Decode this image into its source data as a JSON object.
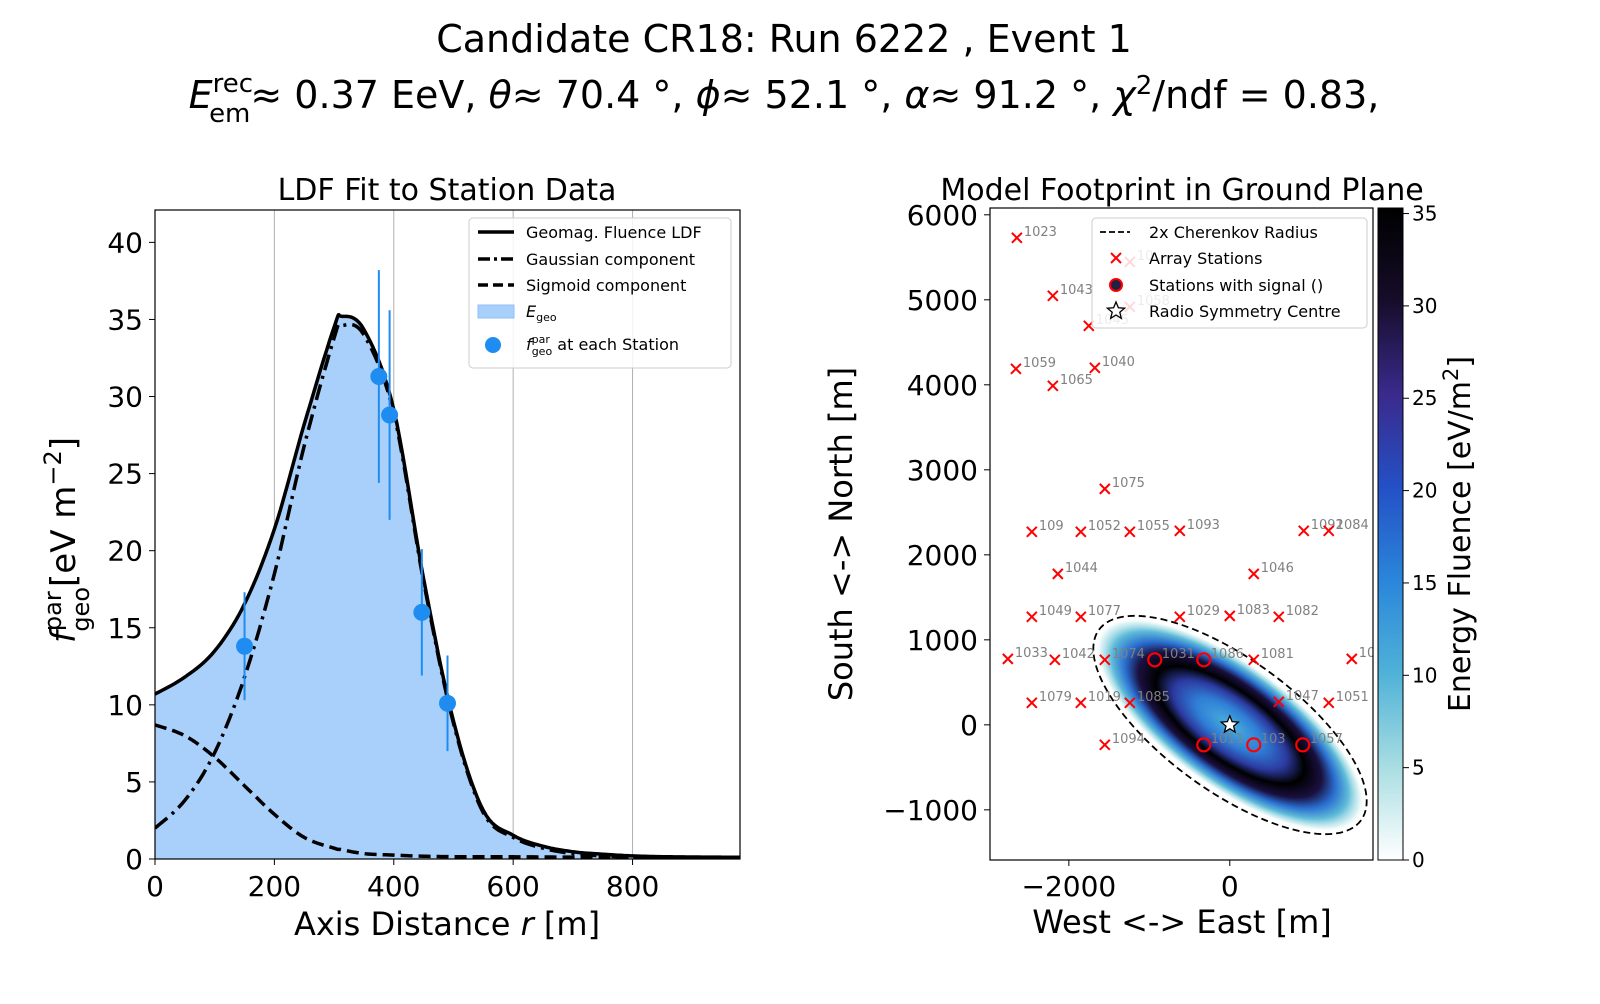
{
  "title": {
    "line1": "Candidate CR18: Run 6222 , Event 1",
    "energy_symbol": "E",
    "energy_sup": "rec",
    "energy_sub": "em",
    "energy_text": "≈  0.37 EeV, ",
    "theta_symbol": "θ",
    "theta_text": "≈  70.4 °, ",
    "phi_symbol": "ϕ",
    "phi_text": "≈  52.1 °, ",
    "alpha_symbol": "α",
    "alpha_text": "≈  91.2 °, ",
    "chi_symbol": "χ",
    "chi_sup": "2",
    "chi_text": "/ndf = 0.83,"
  },
  "chart_data": [
    {
      "type": "line",
      "title": "LDF Fit to Station Data",
      "xlabel": "Axis Distance r [m]",
      "xlabel_text": "Axis Distance ",
      "xlabel_var": "r",
      "xlabel_unit": " [m]",
      "ylabel": "f_geo^par [eV m^-2]",
      "ylabel_var": "f",
      "ylabel_sub": "geo",
      "ylabel_sup": "par",
      "ylabel_unit": "[eV m",
      "ylabel_unit_sup": "−2",
      "ylabel_unit_close": "]",
      "xlim": [
        0,
        980
      ],
      "ylim": [
        0,
        42.1
      ],
      "xticks": [
        "0",
        "200",
        "400",
        "600",
        "800"
      ],
      "xtick_values": [
        0,
        200,
        400,
        600,
        800
      ],
      "yticks": [
        "0",
        "5",
        "10",
        "15",
        "20",
        "25",
        "30",
        "35",
        "40"
      ],
      "ytick_values": [
        0,
        5,
        10,
        15,
        20,
        25,
        30,
        35,
        40
      ],
      "grid": "vertical",
      "legend_position": "top-right",
      "x": [
        0,
        50,
        100,
        150,
        200,
        250,
        300,
        313,
        350,
        400,
        450,
        500,
        550,
        600,
        650,
        700,
        750,
        800,
        850,
        900,
        950
      ],
      "series": [
        {
          "name": "Geomag. Fluence LDF",
          "style": "solid",
          "values": [
            10.7,
            11.8,
            13.5,
            16.55,
            21.4,
            28.2,
            34.5,
            35.2,
            34.35,
            29.15,
            18.18,
            8.95,
            3.15,
            1.54,
            0.83,
            0.47,
            0.31,
            0.2,
            0.15,
            0.13,
            0.12
          ]
        },
        {
          "name": "Gaussian component",
          "style": "dashdot",
          "values": [
            2.0,
            3.8,
            6.9,
            11.8,
            18.5,
            26.8,
            33.8,
            34.6,
            34.0,
            28.9,
            18.0,
            8.8,
            3.0,
            1.4,
            0.7,
            0.35,
            0.2,
            0.1,
            0.05,
            0.03,
            0.02
          ]
        },
        {
          "name": "Sigmoid component",
          "style": "dashed",
          "values": [
            8.7,
            8.0,
            6.6,
            4.75,
            2.9,
            1.4,
            0.7,
            0.6,
            0.35,
            0.25,
            0.18,
            0.15,
            0.15,
            0.14,
            0.13,
            0.12,
            0.11,
            0.1,
            0.1,
            0.1,
            0.1
          ]
        }
      ],
      "fill_label_var": "E",
      "fill_label_sub": "geo",
      "points_label_var": "f",
      "points_label_sub": "geo",
      "points_label_sup": "par",
      "points_label_text": " at each Station",
      "points": {
        "r": [
          150,
          375,
          393,
          447,
          490
        ],
        "f": [
          13.8,
          31.3,
          28.8,
          16.0,
          10.1
        ],
        "err": [
          3.5,
          6.9,
          6.8,
          4.1,
          3.1
        ]
      },
      "colors": {
        "fill": "#a8d0fa",
        "points": "#1e8cf0",
        "lines": "#000000"
      }
    },
    {
      "type": "scatter",
      "title": "Model Footprint in Ground Plane",
      "xlabel": "West <-> East [m]",
      "ylabel": "South <-> North [m]",
      "xlim": [
        -2980,
        1780
      ],
      "ylim": [
        -1590,
        6080
      ],
      "xticks": [
        "−2000",
        "0"
      ],
      "xtick_values": [
        -2000,
        0
      ],
      "yticks": [
        "−1000",
        "0",
        "1000",
        "2000",
        "3000",
        "4000",
        "5000",
        "6000"
      ],
      "ytick_values": [
        -1000,
        0,
        1000,
        2000,
        3000,
        4000,
        5000,
        6000
      ],
      "legend_position": "top-right",
      "legend": [
        "2x Cherenkov Radius",
        "Array Stations",
        "Stations with signal ()",
        "Radio Symmetry Centre"
      ],
      "symmetry_centre": [
        0,
        0
      ],
      "stations": [
        {
          "id": "1023",
          "x": -2646,
          "y": 5729,
          "signal": false
        },
        {
          "id": "10",
          "x": -1242,
          "y": 5447,
          "signal": false
        },
        {
          "id": "1043",
          "x": -2199,
          "y": 5047,
          "signal": false
        },
        {
          "id": "1058",
          "x": -1242,
          "y": 4918,
          "signal": false
        },
        {
          "id": "1045",
          "x": -1752,
          "y": 4694,
          "signal": false
        },
        {
          "id": "1059",
          "x": -2658,
          "y": 4188,
          "signal": false
        },
        {
          "id": "1040",
          "x": -1677,
          "y": 4200,
          "signal": false
        },
        {
          "id": "1065",
          "x": -2199,
          "y": 3988,
          "signal": false
        },
        {
          "id": "1075",
          "x": -1553,
          "y": 2776,
          "signal": false
        },
        {
          "id": "109",
          "x": -2460,
          "y": 2271,
          "signal": false
        },
        {
          "id": "1052",
          "x": -1851,
          "y": 2271,
          "signal": false
        },
        {
          "id": "1055",
          "x": -1242,
          "y": 2271,
          "signal": false
        },
        {
          "id": "1093",
          "x": -621,
          "y": 2282,
          "signal": false
        },
        {
          "id": "1092",
          "x": 919,
          "y": 2282,
          "signal": false
        },
        {
          "id": "1084",
          "x": 1230,
          "y": 2282,
          "signal": false
        },
        {
          "id": "1044",
          "x": -2137,
          "y": 1776,
          "signal": false
        },
        {
          "id": "1046",
          "x": 298,
          "y": 1776,
          "signal": false
        },
        {
          "id": "1049",
          "x": -2460,
          "y": 1271,
          "signal": false
        },
        {
          "id": "1077",
          "x": -1851,
          "y": 1271,
          "signal": false
        },
        {
          "id": "1029",
          "x": -621,
          "y": 1271,
          "signal": false
        },
        {
          "id": "1083",
          "x": 0,
          "y": 1282,
          "signal": false
        },
        {
          "id": "1082",
          "x": 609,
          "y": 1271,
          "signal": false
        },
        {
          "id": "1033",
          "x": -2758,
          "y": 776,
          "signal": false
        },
        {
          "id": "1042",
          "x": -2174,
          "y": 765,
          "signal": false
        },
        {
          "id": "1074",
          "x": -1553,
          "y": 765,
          "signal": false
        },
        {
          "id": "1031",
          "x": -932,
          "y": 765,
          "signal": true
        },
        {
          "id": "1086",
          "x": -323,
          "y": 765,
          "signal": true
        },
        {
          "id": "1081",
          "x": 298,
          "y": 765,
          "signal": false
        },
        {
          "id": "10",
          "x": 1516,
          "y": 776,
          "signal": false
        },
        {
          "id": "1079",
          "x": -2460,
          "y": 259,
          "signal": false
        },
        {
          "id": "1019",
          "x": -1851,
          "y": 259,
          "signal": false
        },
        {
          "id": "1085",
          "x": -1242,
          "y": 259,
          "signal": false
        },
        {
          "id": "1047",
          "x": 609,
          "y": 271,
          "signal": false
        },
        {
          "id": "1051",
          "x": 1230,
          "y": 259,
          "signal": false
        },
        {
          "id": "1094",
          "x": -1553,
          "y": -235,
          "signal": false
        },
        {
          "id": "1011",
          "x": -323,
          "y": -235,
          "signal": true
        },
        {
          "id": "103",
          "x": 298,
          "y": -235,
          "signal": true
        },
        {
          "id": "1057",
          "x": 907,
          "y": -235,
          "signal": true
        }
      ],
      "colorbar": {
        "label": "Energy Fluence [eV/m",
        "label_sup": "2",
        "label_close": "]",
        "range": [
          0,
          35.3
        ],
        "ticks": [
          "0",
          "5",
          "10",
          "15",
          "20",
          "25",
          "30",
          "35"
        ],
        "tick_values": [
          0,
          5,
          10,
          15,
          20,
          25,
          30,
          35
        ],
        "colormap": [
          "#ffffff",
          "#a9dde2",
          "#4fb2d8",
          "#2a86da",
          "#2450c6",
          "#3a2a8c",
          "#160d2a",
          "#000000"
        ]
      },
      "colors": {
        "stations": "#ff0000",
        "labels": "#808080"
      }
    }
  ]
}
